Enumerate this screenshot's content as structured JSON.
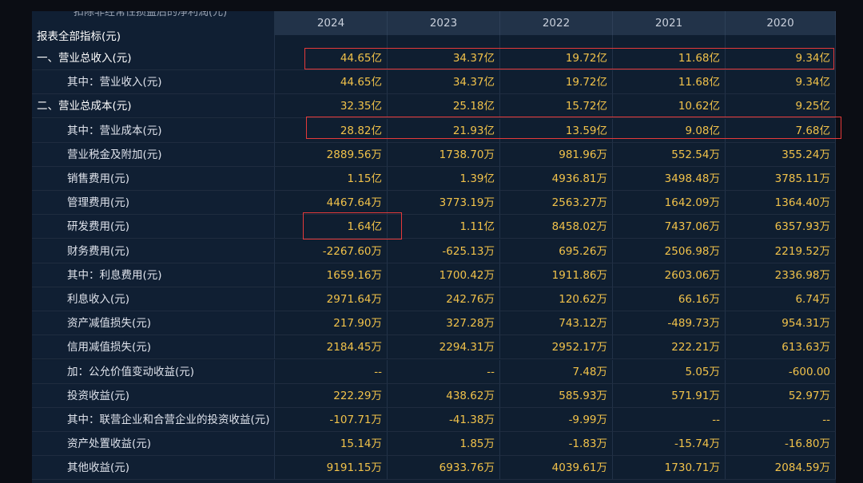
{
  "header": {
    "cut_title": "扣除非经常性损益后的净利润(元)",
    "table_title": "报表全部指标(元)",
    "years": [
      "2024",
      "2023",
      "2022",
      "2021",
      "2020"
    ]
  },
  "rows": [
    {
      "label": "一、营业总收入(元)",
      "level": 0,
      "values": [
        "44.65亿",
        "34.37亿",
        "19.72亿",
        "11.68亿",
        "9.34亿"
      ]
    },
    {
      "label": "其中：营业收入(元)",
      "level": 1,
      "values": [
        "44.65亿",
        "34.37亿",
        "19.72亿",
        "11.68亿",
        "9.34亿"
      ]
    },
    {
      "label": "二、营业总成本(元)",
      "level": 0,
      "values": [
        "32.35亿",
        "25.18亿",
        "15.72亿",
        "10.62亿",
        "9.25亿"
      ]
    },
    {
      "label": "其中：营业成本(元)",
      "level": 1,
      "values": [
        "28.82亿",
        "21.93亿",
        "13.59亿",
        "9.08亿",
        "7.68亿"
      ]
    },
    {
      "label": "营业税金及附加(元)",
      "level": 1,
      "values": [
        "2889.56万",
        "1738.70万",
        "981.96万",
        "552.54万",
        "355.24万"
      ]
    },
    {
      "label": "销售费用(元)",
      "level": 1,
      "values": [
        "1.15亿",
        "1.39亿",
        "4936.81万",
        "3498.48万",
        "3785.11万"
      ]
    },
    {
      "label": "管理费用(元)",
      "level": 1,
      "values": [
        "4467.64万",
        "3773.19万",
        "2563.27万",
        "1642.09万",
        "1364.40万"
      ]
    },
    {
      "label": "研发费用(元)",
      "level": 1,
      "values": [
        "1.64亿",
        "1.11亿",
        "8458.02万",
        "7437.06万",
        "6357.93万"
      ]
    },
    {
      "label": "财务费用(元)",
      "level": 1,
      "values": [
        "-2267.60万",
        "-625.13万",
        "695.26万",
        "2506.98万",
        "2219.52万"
      ]
    },
    {
      "label": "其中：利息费用(元)",
      "level": 1,
      "values": [
        "1659.16万",
        "1700.42万",
        "1911.86万",
        "2603.06万",
        "2336.98万"
      ]
    },
    {
      "label": "利息收入(元)",
      "level": 1,
      "values": [
        "2971.64万",
        "242.76万",
        "120.62万",
        "66.16万",
        "6.74万"
      ]
    },
    {
      "label": "资产减值损失(元)",
      "level": 1,
      "values": [
        "217.90万",
        "327.28万",
        "743.12万",
        "-489.73万",
        "954.31万"
      ]
    },
    {
      "label": "信用减值损失(元)",
      "level": 1,
      "values": [
        "2184.45万",
        "2294.31万",
        "2952.17万",
        "222.21万",
        "613.63万"
      ]
    },
    {
      "label": "加：公允价值变动收益(元)",
      "level": 1,
      "values": [
        "--",
        "--",
        "7.48万",
        "5.05万",
        "-600.00"
      ]
    },
    {
      "label": "投资收益(元)",
      "level": 1,
      "values": [
        "222.29万",
        "438.62万",
        "585.93万",
        "571.91万",
        "52.97万"
      ]
    },
    {
      "label": "其中：联营企业和合营企业的投资收益(元)",
      "level": 1,
      "values": [
        "-107.71万",
        "-41.38万",
        "-9.99万",
        "--",
        "--"
      ]
    },
    {
      "label": "资产处置收益(元)",
      "level": 1,
      "values": [
        "15.14万",
        "1.85万",
        "-1.83万",
        "-15.74万",
        "-16.80万"
      ]
    },
    {
      "label": "其他收益(元)",
      "level": 1,
      "values": [
        "9191.15万",
        "6933.76万",
        "4039.61万",
        "1730.71万",
        "2084.59万"
      ]
    }
  ],
  "colors": {
    "value_text": "#f1c24a",
    "highlight_box": "#e53a3a"
  }
}
